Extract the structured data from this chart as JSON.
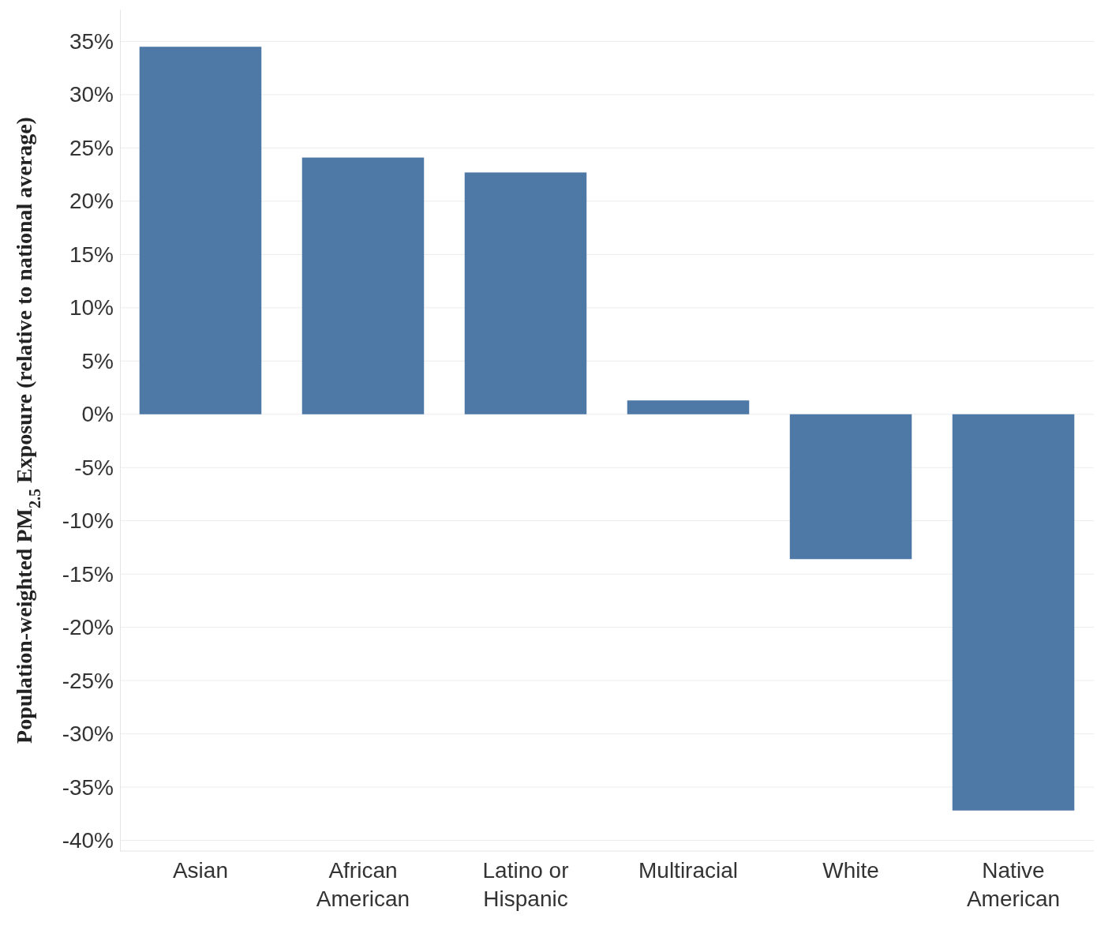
{
  "chart_data": {
    "type": "bar",
    "ylabel": "Population-weighted PM$_{2.5}$ Exposure (relative to national average)",
    "categories": [
      "Asian",
      "African American",
      "Latino or Hispanic",
      "Multiracial",
      "White",
      "Native American"
    ],
    "values": [
      34.5,
      24.1,
      22.7,
      1.3,
      -13.6,
      -37.2
    ],
    "color": "#4e79a7",
    "ylim": [
      -41,
      38
    ],
    "yticks": [
      {
        "value": 35,
        "label": "35%"
      },
      {
        "value": 30,
        "label": "30%"
      },
      {
        "value": 25,
        "label": "25%"
      },
      {
        "value": 20,
        "label": "20%"
      },
      {
        "value": 15,
        "label": "15%"
      },
      {
        "value": 10,
        "label": "10%"
      },
      {
        "value": 5,
        "label": "5%"
      },
      {
        "value": 0,
        "label": "0%"
      },
      {
        "value": -5,
        "label": "-5%"
      },
      {
        "value": -10,
        "label": "-10%"
      },
      {
        "value": -15,
        "label": "-15%"
      },
      {
        "value": -20,
        "label": "-20%"
      },
      {
        "value": -25,
        "label": "-25%"
      },
      {
        "value": -30,
        "label": "-30%"
      },
      {
        "value": -35,
        "label": "-35%"
      },
      {
        "value": -40,
        "label": "-40%"
      }
    ],
    "grid": "y"
  }
}
